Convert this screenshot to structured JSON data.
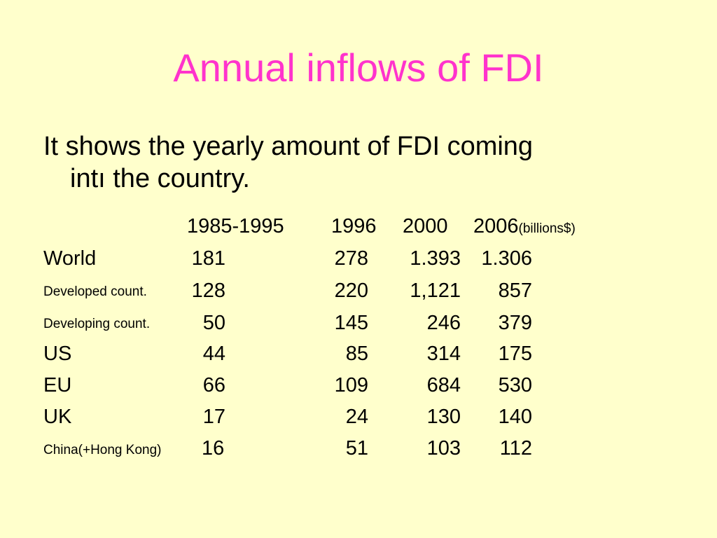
{
  "slide": {
    "title": "Annual inflows of FDI",
    "intro_line1": "It shows the yearly amount of FDI coming",
    "intro_line2": "intı the country."
  },
  "table": {
    "headers": [
      "1985-1995",
      "1996",
      "2000",
      "2006"
    ],
    "unit_note": "(billions$)",
    "rows": [
      {
        "label": "World",
        "values": [
          "181",
          "278",
          "1.393",
          "1.306"
        ]
      },
      {
        "label": "Developed count.",
        "values": [
          "128",
          "220",
          "1,121",
          "857"
        ]
      },
      {
        "label": "Developing count.",
        "values": [
          "50",
          "145",
          "246",
          "379"
        ]
      },
      {
        "label": "US",
        "values": [
          "44",
          "85",
          "314",
          "175"
        ]
      },
      {
        "label": "EU",
        "values": [
          "66",
          "109",
          "684",
          "530"
        ]
      },
      {
        "label": "UK",
        "values": [
          "17",
          "24",
          "130",
          "140"
        ]
      },
      {
        "label": "China(+Hong Kong)",
        "values": [
          "16",
          "51",
          "103",
          "112"
        ]
      }
    ]
  },
  "colors": {
    "background": "#ffffcc",
    "title": "#ff33cc",
    "text": "#000000"
  }
}
